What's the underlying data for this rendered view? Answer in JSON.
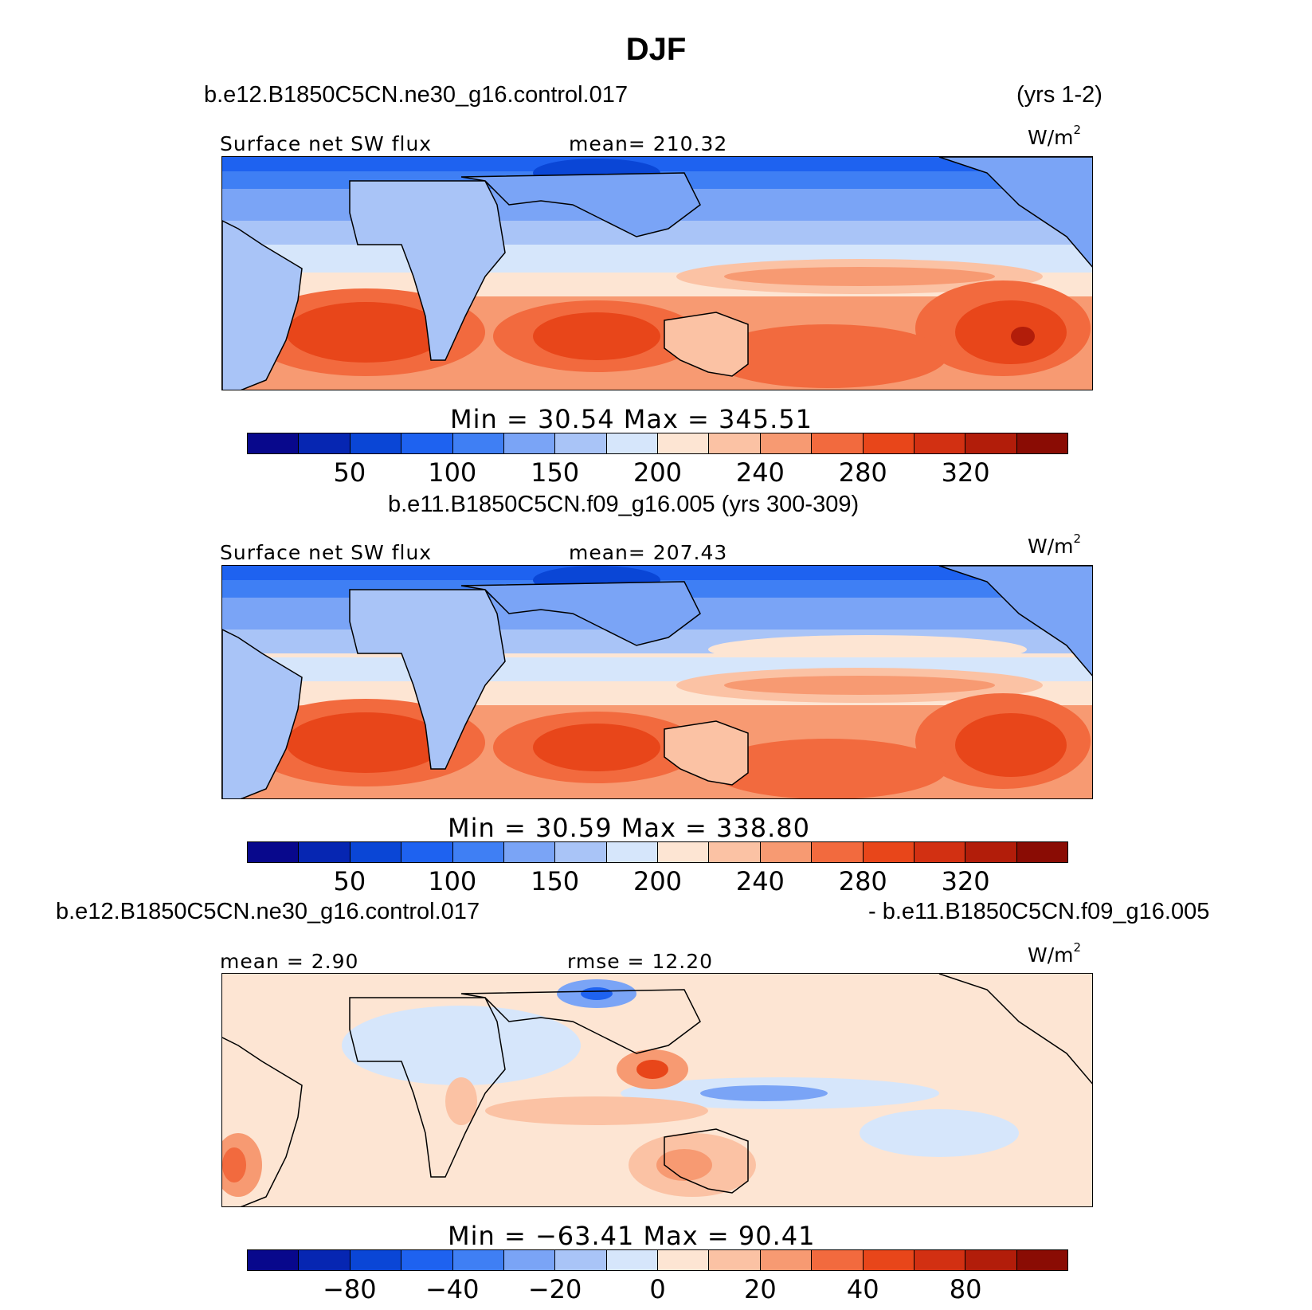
{
  "title": "DJF",
  "panel1": {
    "case": "b.e12.B1850C5CN.ne30_g16.control.017",
    "years": "(yrs 1-2)",
    "variable": "Surface net SW flux",
    "stat": "mean= 210.32",
    "unit": "W/m",
    "unit_exp": "2",
    "minmax": "Min =   30.54  Max  =  345.51"
  },
  "panel2": {
    "case": "b.e11.B1850C5CN.f09_g16.005 (yrs 300-309)",
    "variable": "Surface net SW flux",
    "stat": "mean= 207.43",
    "unit": "W/m",
    "unit_exp": "2",
    "minmax": "Min =   30.59  Max  =  338.80"
  },
  "panel3": {
    "case_left": "b.e12.B1850C5CN.ne30_g16.control.017",
    "case_right": "- b.e11.B1850C5CN.f09_g16.005",
    "stat_left": "mean =    2.90",
    "stat_right": "rmse =   12.20",
    "unit": "W/m",
    "unit_exp": "2",
    "minmax": "Min  =  −63.41  Max  =    90.41"
  },
  "colorbar": {
    "colors": [
      "#08088c",
      "#0626b2",
      "#0a46d6",
      "#1e62f0",
      "#3f7ff4",
      "#7aa4f6",
      "#a9c4f7",
      "#d6e6fb",
      "#fde5d3",
      "#fbc2a4",
      "#f79a72",
      "#f26a3e",
      "#e8461a",
      "#d23012",
      "#b21d0a",
      "#8a0c04"
    ],
    "ticks1": [
      "50",
      "100",
      "150",
      "200",
      "240",
      "280",
      "320"
    ],
    "ticks2": [
      "50",
      "100",
      "150",
      "200",
      "240",
      "280",
      "320"
    ],
    "ticks3": [
      "−80",
      "−40",
      "−20",
      "0",
      "20",
      "40",
      "80"
    ]
  }
}
